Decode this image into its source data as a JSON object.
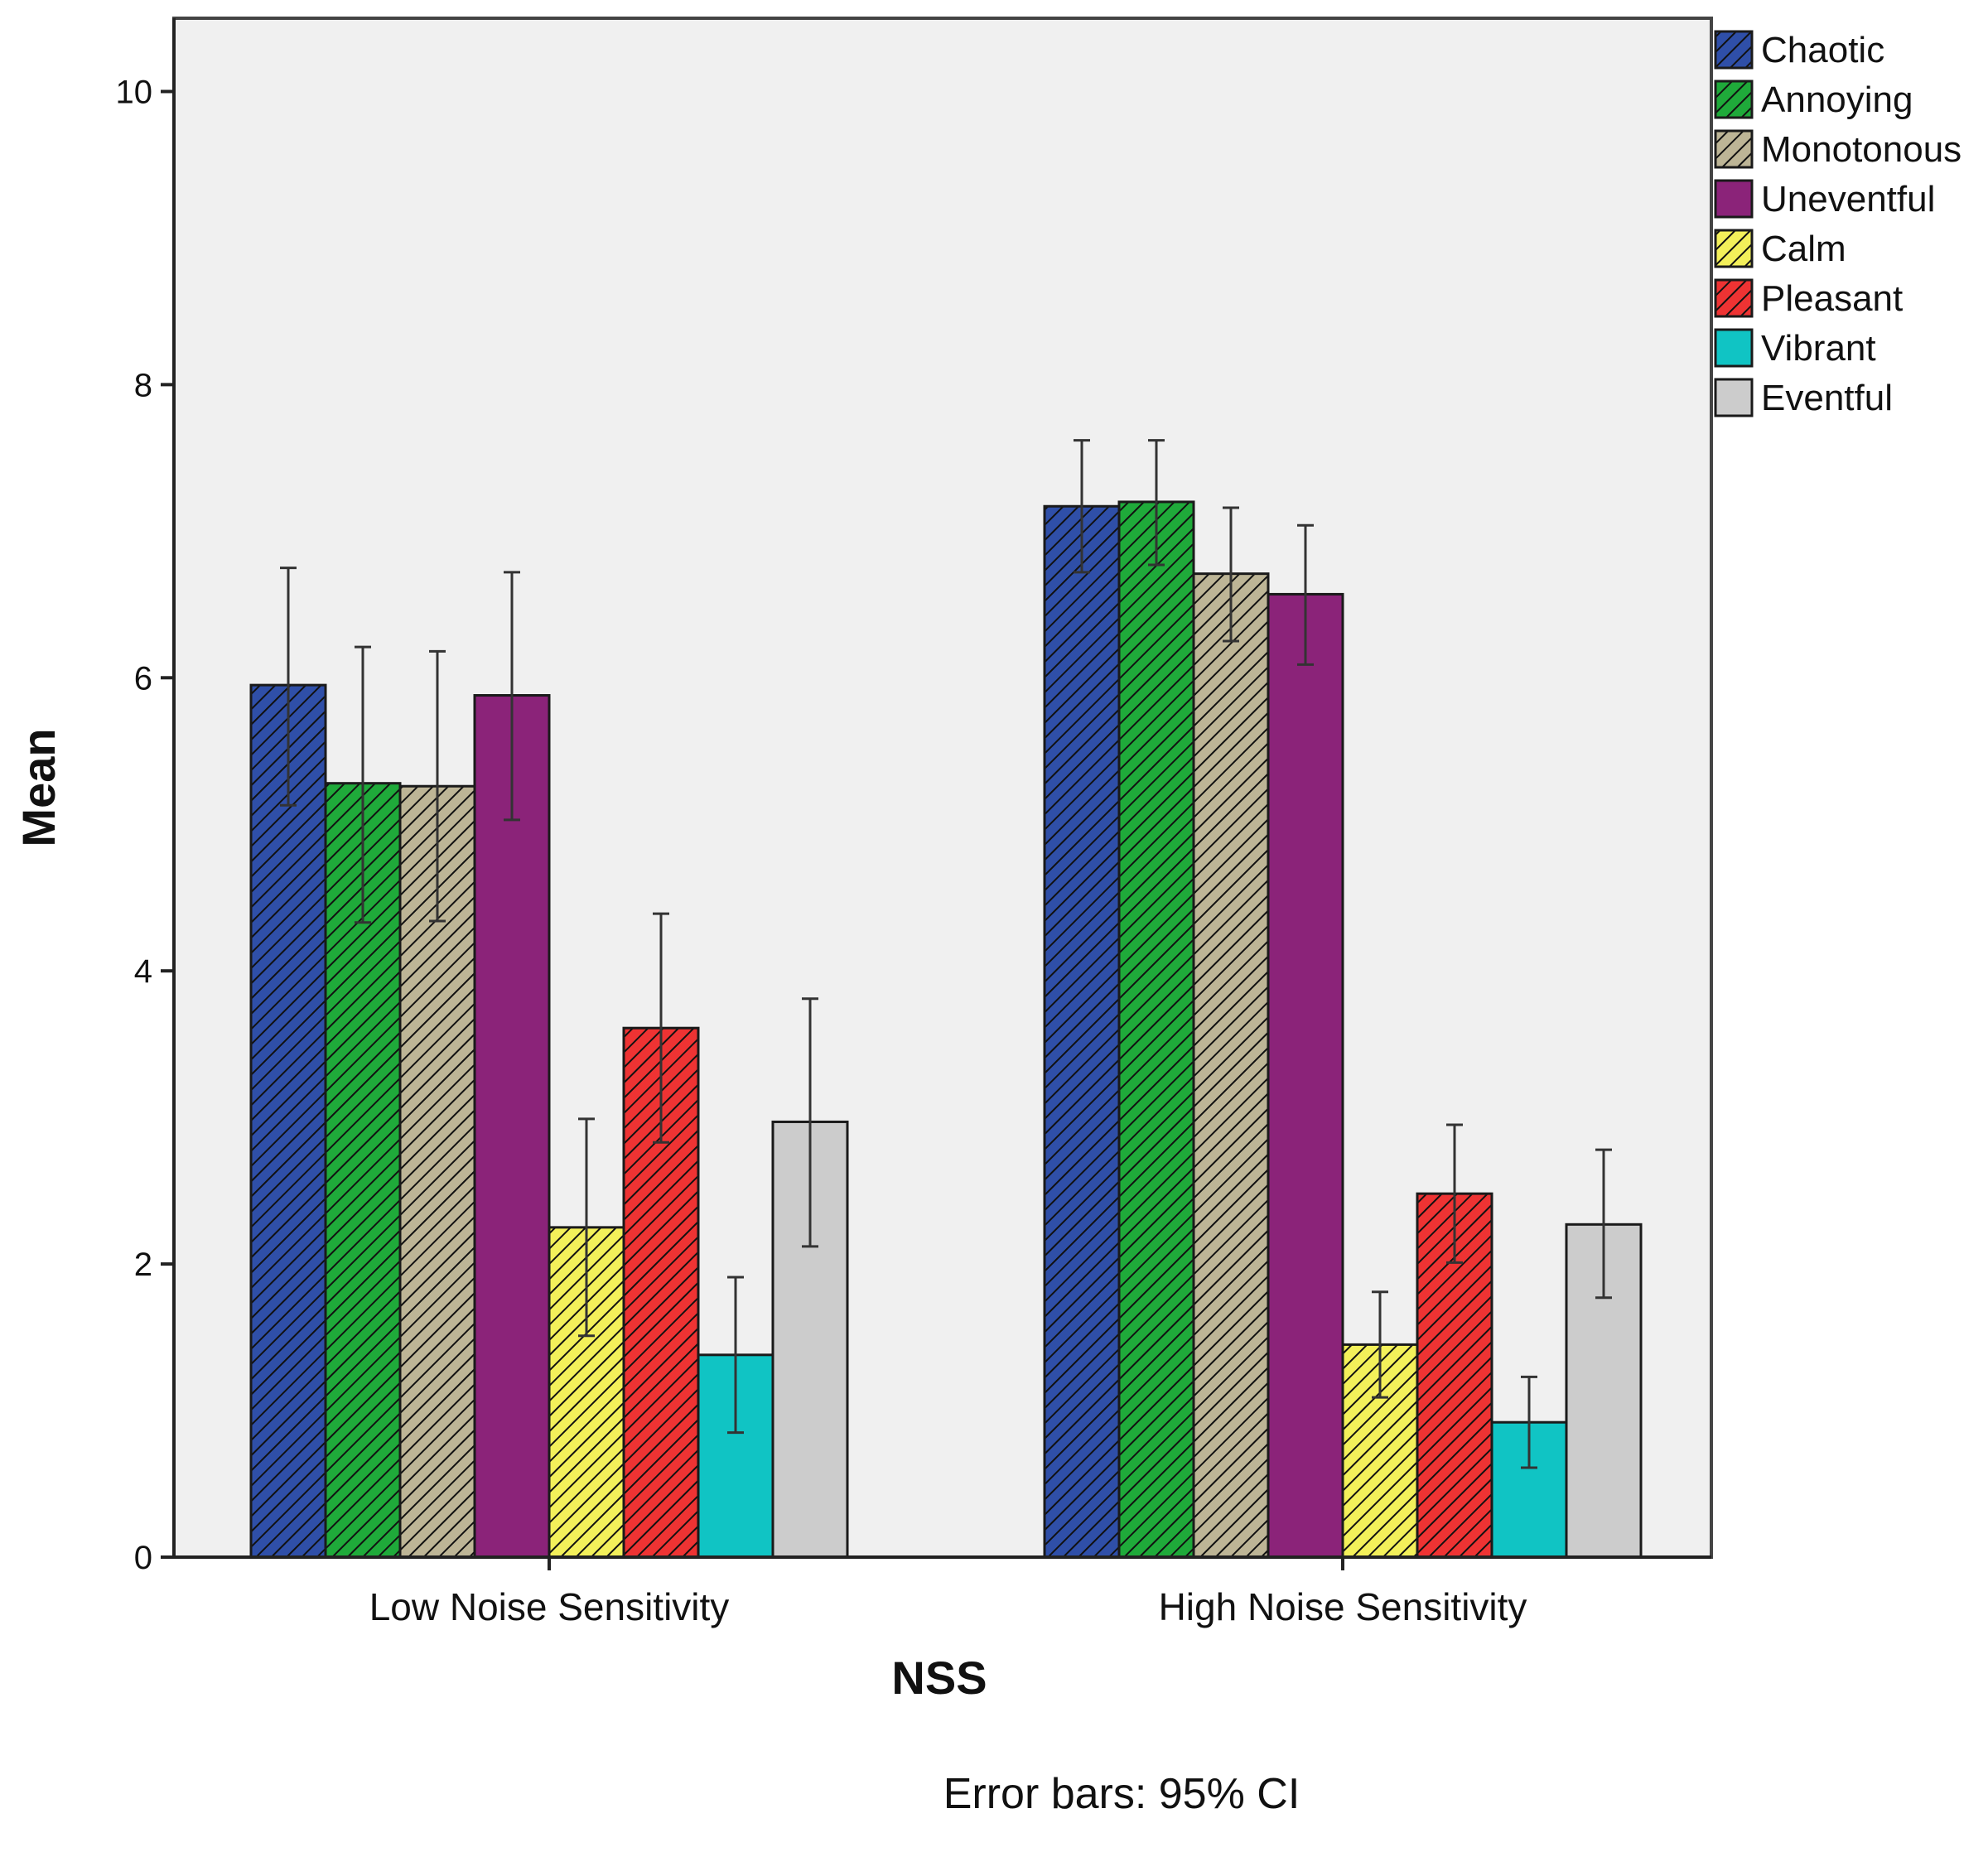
{
  "chart_data": {
    "type": "bar",
    "categories": [
      "Low Noise Sensitivity",
      "High Noise Sensitivity"
    ],
    "xlabel": "NSS",
    "ylabel": "Mean",
    "ylim": [
      0,
      10.5
    ],
    "yticks": [
      0,
      2,
      4,
      6,
      8,
      10
    ],
    "grid": false,
    "legend_position": "right",
    "note": "Error bars: 95% CI",
    "series": [
      {
        "name": "Chaotic",
        "color": "#2F4FA8",
        "hatched": true,
        "values": [
          5.95,
          7.17
        ],
        "ci_low": [
          5.13,
          6.72
        ],
        "ci_high": [
          6.75,
          7.62
        ]
      },
      {
        "name": "Annoying",
        "color": "#1FAA3A",
        "hatched": true,
        "values": [
          5.28,
          7.2
        ],
        "ci_low": [
          4.33,
          6.77
        ],
        "ci_high": [
          6.21,
          7.62
        ]
      },
      {
        "name": "Monotonous",
        "color": "#BDB596",
        "hatched": true,
        "values": [
          5.26,
          6.71
        ],
        "ci_low": [
          4.34,
          6.25
        ],
        "ci_high": [
          6.18,
          7.16
        ]
      },
      {
        "name": "Uneventful",
        "color": "#8B2379",
        "hatched": false,
        "values": [
          5.88,
          6.57
        ],
        "ci_low": [
          5.03,
          6.09
        ],
        "ci_high": [
          6.72,
          7.04
        ]
      },
      {
        "name": "Calm",
        "color": "#F3F05A",
        "hatched": true,
        "values": [
          2.25,
          1.45
        ],
        "ci_low": [
          1.51,
          1.09
        ],
        "ci_high": [
          2.99,
          1.81
        ]
      },
      {
        "name": "Pleasant",
        "color": "#EE3333",
        "hatched": true,
        "values": [
          3.61,
          2.48
        ],
        "ci_low": [
          2.83,
          2.01
        ],
        "ci_high": [
          4.39,
          2.95
        ]
      },
      {
        "name": "Vibrant",
        "color": "#10C4C4",
        "hatched": false,
        "values": [
          1.38,
          0.92
        ],
        "ci_low": [
          0.85,
          0.61
        ],
        "ci_high": [
          1.91,
          1.23
        ]
      },
      {
        "name": "Eventful",
        "color": "#CCCCCC",
        "hatched": false,
        "values": [
          2.97,
          2.27
        ],
        "ci_low": [
          2.12,
          1.77
        ],
        "ci_high": [
          3.81,
          2.78
        ]
      }
    ]
  }
}
